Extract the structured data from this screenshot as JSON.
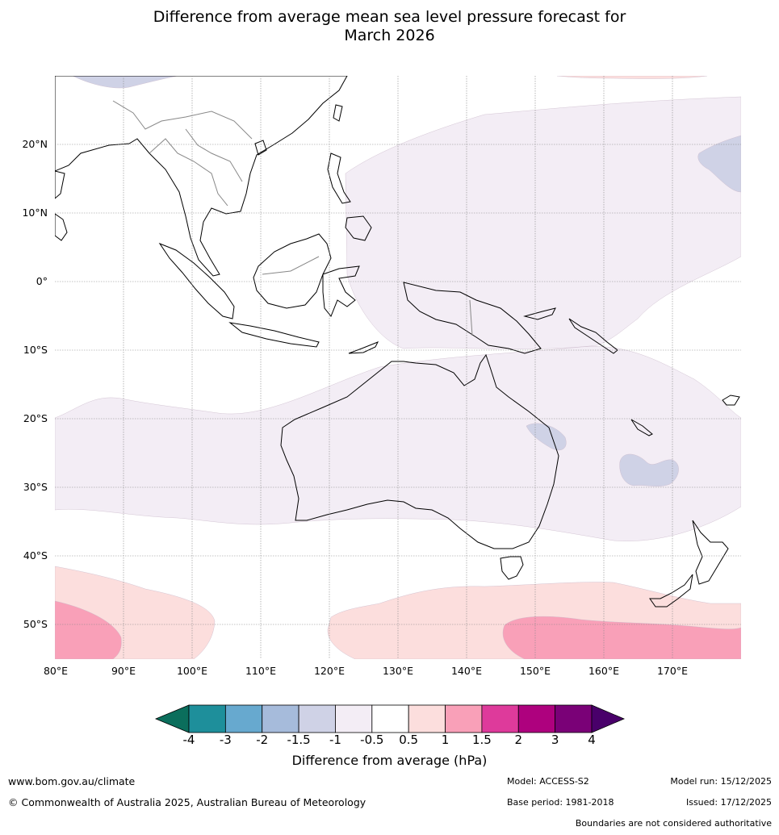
{
  "title": {
    "line1": "Difference from average mean sea level pressure forecast for",
    "line2": "March 2026"
  },
  "map": {
    "lat_labels": [
      "20°N",
      "10°N",
      "0°",
      "10°S",
      "20°S",
      "30°S",
      "40°S",
      "50°S"
    ],
    "lon_labels": [
      "80°E",
      "90°E",
      "100°E",
      "110°E",
      "120°E",
      "130°E",
      "140°E",
      "150°E",
      "160°E",
      "170°E"
    ],
    "lat_extent": [
      -55,
      30
    ],
    "lon_extent": [
      80,
      180
    ],
    "fill_colors": {
      "neg_1_0": "#f3edf5",
      "neg_1_5": "#cfd2e6",
      "pos_0_5": "#fcdedd",
      "pos_1_0": "#f9a0b8"
    },
    "land_color": "#ffffff",
    "coast_color": "#000000",
    "border_color": "#888888",
    "grid_color": "#888888"
  },
  "colorbar": {
    "title": "Difference from average (hPa)",
    "tick_labels": [
      "-4",
      "-3",
      "-2",
      "-1.5",
      "-1",
      "-0.5",
      "0.5",
      "1",
      "1.5",
      "2",
      "3",
      "4"
    ],
    "colors": [
      "#0b6e5c",
      "#1e8f9b",
      "#67a9cf",
      "#a6bbdb",
      "#cfd2e6",
      "#f3edf5",
      "#ffffff",
      "#fcdedd",
      "#f9a0b8",
      "#de3a9b",
      "#ae017e",
      "#7a0177",
      "#49006a"
    ]
  },
  "footer": {
    "website": "www.bom.gov.au/climate",
    "copyright": "© Commonwealth of Australia 2025, Australian Bureau of Meteorology",
    "model": "Model: ACCESS-S2",
    "base_period": "Base period: 1981-2018",
    "model_run": "Model run: 15/12/2025",
    "issued": "Issued: 17/12/2025",
    "disclaimer": "Boundaries are not considered authoritative"
  }
}
